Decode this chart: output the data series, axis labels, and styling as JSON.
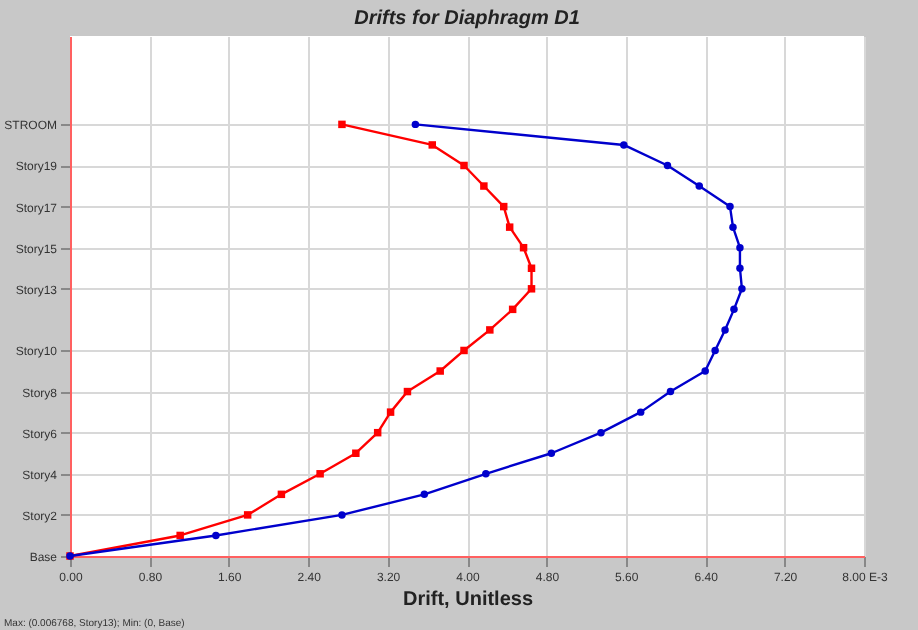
{
  "chart_data": {
    "type": "line",
    "orientation": "horizontal",
    "title": "Drifts for Diaphragm D1",
    "xlabel": "Drift, Unitless",
    "categories": [
      "STROOM",
      null,
      "Story19",
      null,
      "Story17",
      null,
      "Story15",
      null,
      "Story13",
      null,
      null,
      "Story10",
      null,
      "Story8",
      null,
      "Story6",
      null,
      "Story4",
      null,
      "Story2",
      null,
      "Base"
    ],
    "series": [
      {
        "color": "#ff0000",
        "marker": "square",
        "values": [
          2.74,
          3.65,
          3.97,
          4.17,
          4.37,
          4.43,
          4.57,
          4.65,
          4.65,
          4.46,
          4.23,
          3.97,
          3.73,
          3.4,
          3.23,
          3.1,
          2.88,
          2.52,
          2.13,
          1.79,
          1.11,
          0
        ]
      },
      {
        "color": "#0000cc",
        "marker": "circle",
        "values": [
          3.48,
          5.58,
          6.02,
          6.34,
          6.65,
          6.68,
          6.75,
          6.75,
          6.77,
          6.69,
          6.6,
          6.5,
          6.4,
          6.05,
          5.75,
          5.35,
          4.85,
          4.19,
          3.57,
          2.74,
          1.47,
          0
        ]
      }
    ],
    "xlim": [
      0,
      8
    ],
    "xticks": [
      {
        "value": 0,
        "label": "0.00"
      },
      {
        "value": 0.8,
        "label": "0.80"
      },
      {
        "value": 1.6,
        "label": "1.60"
      },
      {
        "value": 2.4,
        "label": "2.40"
      },
      {
        "value": 3.2,
        "label": "3.20"
      },
      {
        "value": 4,
        "label": "4.00"
      },
      {
        "value": 4.8,
        "label": "4.80"
      },
      {
        "value": 5.6,
        "label": "5.60"
      },
      {
        "value": 6.4,
        "label": "6.40"
      },
      {
        "value": 7.2,
        "label": "7.20"
      },
      {
        "value": 8,
        "label": "8.00 E-3"
      }
    ],
    "grid": true,
    "annotations": [
      "Max: (0.006768, Story13);  Min: (0, Base)"
    ]
  }
}
